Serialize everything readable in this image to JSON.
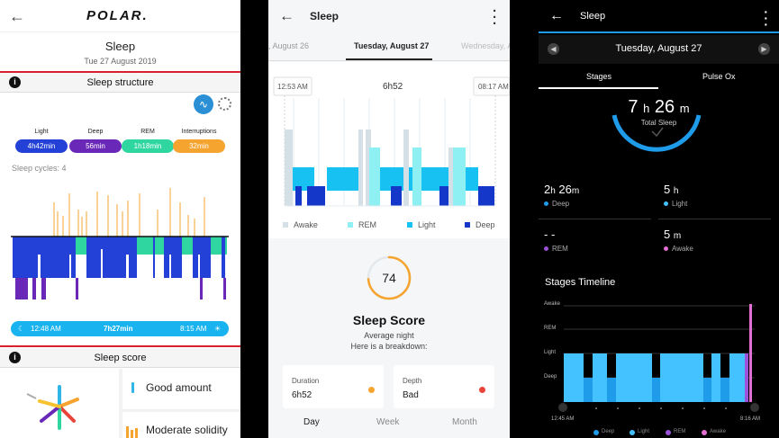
{
  "polar": {
    "brand": "POLAR.",
    "title": "Sleep",
    "date": "Tue 27 August 2019",
    "section_structure": "Sleep structure",
    "info_glyph": "i",
    "stages": [
      {
        "label": "Light",
        "value": "4h42min",
        "color": "#2341d6"
      },
      {
        "label": "Deep",
        "value": "56min",
        "color": "#6a28b8"
      },
      {
        "label": "REM",
        "value": "1h18min",
        "color": "#2fd6a0"
      },
      {
        "label": "Interruptions",
        "value": "32min",
        "color": "#f6a430"
      }
    ],
    "cycles": "Sleep cycles: 4",
    "start_time": "12:48 AM",
    "duration": "7h27min",
    "end_time": "8:15 AM",
    "section_score": "Sleep score",
    "score_items": [
      "Good amount",
      "Moderate solidity"
    ]
  },
  "fitbit": {
    "title": "Sleep",
    "dates": {
      "prev": ", August 26",
      "current": "Tuesday, August 27",
      "next": "Wednesday, August"
    },
    "start_time": "12:53 AM",
    "duration": "6h52",
    "end_time": "08:17 AM",
    "legend": [
      {
        "label": "Awake",
        "color": "#d5dfe6"
      },
      {
        "label": "REM",
        "color": "#8ff0f3"
      },
      {
        "label": "Light",
        "color": "#17c2f2"
      },
      {
        "label": "Deep",
        "color": "#1437c9"
      }
    ],
    "score": "74",
    "score_fraction": 0.74,
    "score_title": "Sleep Score",
    "score_quality": "Average night",
    "score_breakdown": "Here is a breakdown:",
    "cards": [
      {
        "label": "Duration",
        "value": "6h52",
        "dot": "#f6a430"
      },
      {
        "label": "Depth",
        "value": "Bad",
        "dot": "#e8443a"
      }
    ],
    "tabs": [
      "Day",
      "Week",
      "Month"
    ]
  },
  "garmin": {
    "title": "Sleep",
    "date": "Tuesday, August 27",
    "tabs": [
      "Stages",
      "Pulse Ox"
    ],
    "total_hours": "7",
    "total_minutes": "26",
    "unit_h": "h",
    "unit_m": "m",
    "total_label": "Total Sleep",
    "stats": [
      {
        "value": "2",
        "unit1": "h",
        "value2": "26",
        "unit2": "m",
        "name": "Deep",
        "color": "#1e9be9"
      },
      {
        "value": "5",
        "unit1": "h",
        "value2": "",
        "unit2": "",
        "name": "Light",
        "color": "#44c2ff"
      },
      {
        "value": "- -",
        "unit1": "",
        "value2": "",
        "unit2": "",
        "name": "REM",
        "color": "#9b52d9"
      },
      {
        "value": "5",
        "unit1": "m",
        "value2": "",
        "unit2": "",
        "name": "Awake",
        "color": "#e36fd2"
      }
    ],
    "timeline_title": "Stages Timeline",
    "levels": [
      "Awake",
      "REM",
      "Light",
      "Deep"
    ],
    "start_time": "12:45 AM",
    "end_time": "8:16 AM",
    "legend": [
      "Deep",
      "Light",
      "REM",
      "Awake"
    ],
    "legend_colors": [
      "#1e9be9",
      "#44c2ff",
      "#9b52d9",
      "#e36fd2"
    ]
  }
}
